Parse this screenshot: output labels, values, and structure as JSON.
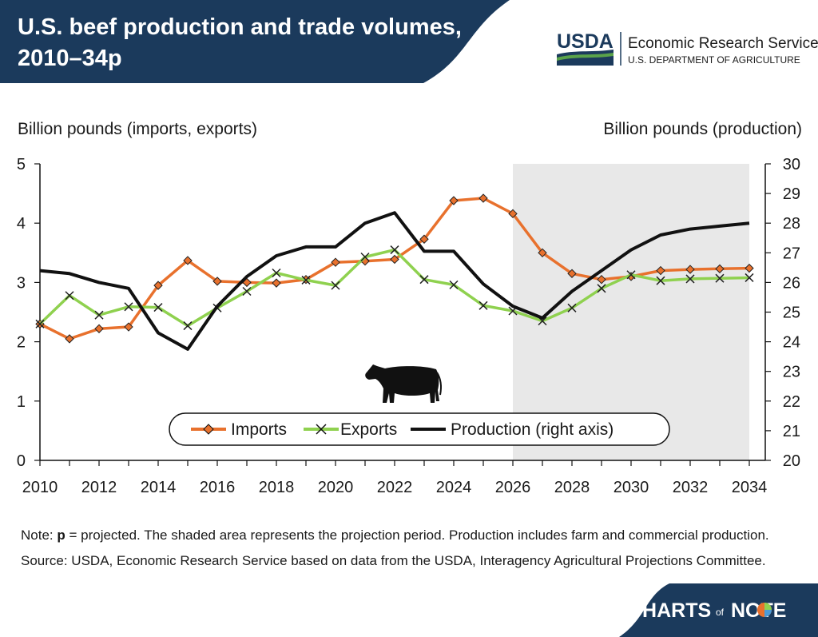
{
  "header": {
    "title_line1": "U.S. beef production and trade volumes,",
    "title_line2": "2010–34p",
    "agency_logo": "USDA",
    "agency_name": "Economic Research Service",
    "department": "U.S. DEPARTMENT OF AGRICULTURE"
  },
  "chart_data": {
    "type": "line",
    "left_axis_label": "Billion pounds (imports, exports)",
    "right_axis_label": "Billion pounds (production)",
    "x": [
      2010,
      2011,
      2012,
      2013,
      2014,
      2015,
      2016,
      2017,
      2018,
      2019,
      2020,
      2021,
      2022,
      2023,
      2024,
      2025,
      2026,
      2027,
      2028,
      2029,
      2030,
      2031,
      2032,
      2033,
      2034
    ],
    "x_tick_labels": [
      "2010",
      "2012",
      "2014",
      "2016",
      "2018",
      "2020",
      "2022",
      "2024",
      "2026",
      "2028",
      "2030",
      "2032",
      "2034"
    ],
    "ylim_left": [
      0,
      5
    ],
    "y_left_ticks": [
      "0",
      "1",
      "2",
      "3",
      "4",
      "5"
    ],
    "ylim_right": [
      20,
      30
    ],
    "y_right_ticks": [
      "20",
      "21",
      "22",
      "23",
      "24",
      "25",
      "26",
      "27",
      "28",
      "29",
      "30"
    ],
    "projection_start": 2026,
    "projection_end": 2034,
    "legend": [
      "Imports",
      "Exports",
      "Production (right axis)"
    ],
    "series": [
      {
        "name": "Imports",
        "axis": "left",
        "color": "#e8712d",
        "marker": "diamond",
        "values": [
          2.3,
          2.05,
          2.22,
          2.25,
          2.95,
          3.37,
          3.02,
          3.0,
          2.99,
          3.05,
          3.34,
          3.36,
          3.39,
          3.73,
          4.38,
          4.42,
          4.16,
          3.5,
          3.15,
          3.05,
          3.1,
          3.2,
          3.22,
          3.23,
          3.24
        ]
      },
      {
        "name": "Exports",
        "axis": "left",
        "color": "#8fd14f",
        "marker": "x",
        "values": [
          2.3,
          2.78,
          2.45,
          2.59,
          2.58,
          2.27,
          2.57,
          2.85,
          3.16,
          3.04,
          2.95,
          3.43,
          3.55,
          3.05,
          2.96,
          2.61,
          2.52,
          2.35,
          2.57,
          2.9,
          3.13,
          3.03,
          3.06,
          3.07,
          3.08
        ]
      },
      {
        "name": "Production (right axis)",
        "axis": "right",
        "color": "#111111",
        "marker": "none",
        "values": [
          26.4,
          26.3,
          26.0,
          25.8,
          24.3,
          23.75,
          25.2,
          26.2,
          26.9,
          27.2,
          27.2,
          28.0,
          28.35,
          27.05,
          27.05,
          25.95,
          25.2,
          24.8,
          25.7,
          26.4,
          27.1,
          27.6,
          27.8,
          27.9,
          28.0
        ]
      }
    ]
  },
  "footer": {
    "note_label": "Note: ",
    "note_p": "p",
    "note_text": " = projected. The shaded area represents the projection period. Production includes farm and commercial production.",
    "source": "Source: USDA, Economic Research Service based on data from the USDA, Interagency Agricultural Projections Committee.",
    "brand_charts": "CHARTS",
    "brand_of": "of",
    "brand_note": "NOTE"
  },
  "colors": {
    "navy": "#1b3a5c",
    "imports": "#e8712d",
    "exports": "#8fd14f",
    "production": "#111111",
    "shade": "#e8e8e8"
  }
}
